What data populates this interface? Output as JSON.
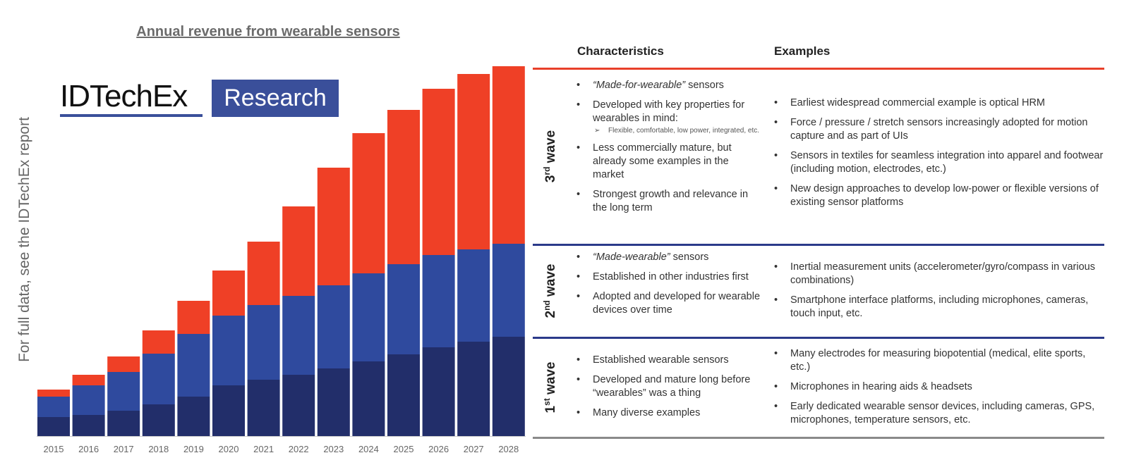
{
  "title": "Annual revenue from wearable sensors",
  "logo": {
    "name": "IDTechEx",
    "sub": "Research"
  },
  "side_note": "For full data, see the IDTechEx report",
  "colors": {
    "wave1": "#222e6a",
    "wave2": "#2f4a9e",
    "wave3": "#ef4026",
    "red_rule": "#e8402a",
    "navy_rule": "#2b3a8a"
  },
  "chart_data": {
    "type": "bar",
    "stacked": true,
    "title": "Annual revenue from wearable sensors",
    "xlabel": "",
    "ylabel": "",
    "y_axis_shown": false,
    "grid": false,
    "value_units": "relative (no axis printed)",
    "categories": [
      "2015",
      "2016",
      "2017",
      "2018",
      "2019",
      "2020",
      "2021",
      "2022",
      "2023",
      "2024",
      "2025",
      "2026",
      "2027",
      "2028"
    ],
    "series": [
      {
        "values": [
          27,
          30,
          36,
          45,
          56,
          72,
          80,
          87,
          96,
          106,
          116,
          126,
          134,
          141
        ]
      },
      {
        "values": [
          29,
          42,
          55,
          72,
          89,
          99,
          106,
          112,
          118,
          125,
          128,
          131,
          131,
          132
        ]
      },
      {
        "values": [
          10,
          15,
          22,
          33,
          47,
          64,
          90,
          127,
          167,
          199,
          219,
          236,
          249,
          252
        ]
      }
    ]
  },
  "table": {
    "headers": [
      "Characteristics",
      "Examples"
    ],
    "rows": [
      {
        "num": "3",
        "sup": "rd",
        "label": " wave",
        "characteristics": [
          {
            "em": "“Made-for-wearable”",
            "text": " sensors"
          },
          {
            "text": "Developed with key properties for wearables in mind:",
            "sub": "Flexible, comfortable, low power, integrated, etc."
          },
          {
            "text": "Less commercially mature, but already some examples in the market"
          },
          {
            "text": "Strongest growth and relevance in the long term"
          }
        ],
        "examples": [
          "Earliest widespread commercial example is optical HRM",
          "Force / pressure / stretch sensors increasingly adopted for motion capture and as part of UIs",
          "Sensors in textiles for seamless integration into apparel and footwear (including motion, electrodes, etc.)",
          "New design approaches to develop low-power or flexible versions of existing sensor platforms"
        ]
      },
      {
        "num": "2",
        "sup": "nd",
        "label": " wave",
        "characteristics": [
          {
            "em": "“Made-wearable”",
            "text": " sensors"
          },
          {
            "text": "Established in other industries first"
          },
          {
            "text": "Adopted and developed for wearable devices over time"
          }
        ],
        "examples": [
          "Inertial measurement units (accelerometer/gyro/compass in various combinations)",
          "Smartphone interface platforms, including microphones, cameras, touch input, etc."
        ]
      },
      {
        "num": "1",
        "sup": "st",
        "label": " wave",
        "characteristics": [
          {
            "text": "Established wearable sensors"
          },
          {
            "text": "Developed and mature long before “wearables” was a thing"
          },
          {
            "text": "Many diverse examples"
          }
        ],
        "examples": [
          "Many electrodes for measuring biopotential (medical, elite sports, etc.)",
          "Microphones in hearing aids & headsets",
          "Early dedicated wearable sensor devices, including cameras, GPS, microphones, temperature sensors, etc."
        ]
      }
    ]
  }
}
